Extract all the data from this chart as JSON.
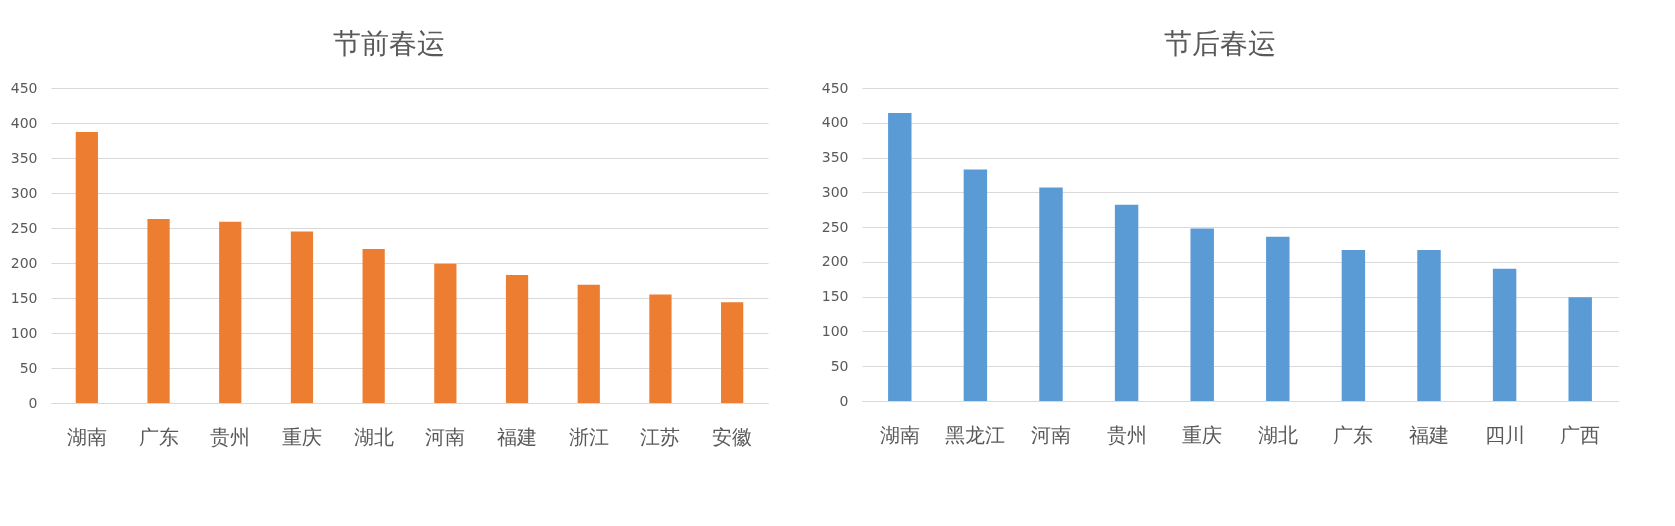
{
  "chart_data": [
    {
      "type": "bar",
      "title": "节前春运",
      "categories": [
        "湖南",
        "广东",
        "贵州",
        "重庆",
        "湖北",
        "河南",
        "福建",
        "浙江",
        "江苏",
        "安徽"
      ],
      "values": [
        387,
        263,
        259,
        245,
        220,
        199,
        183,
        169,
        155,
        144
      ],
      "color": "#ed7d31",
      "ylim": [
        0,
        450
      ],
      "yticks": [
        0,
        50,
        100,
        150,
        200,
        250,
        300,
        350,
        400,
        450
      ],
      "grid": "y"
    },
    {
      "type": "bar",
      "title": "节后春运",
      "categories": [
        "湖南",
        "黑龙江",
        "河南",
        "贵州",
        "重庆",
        "湖北",
        "广东",
        "福建",
        "四川",
        "广西"
      ],
      "values": [
        414,
        333,
        307,
        282,
        248,
        236,
        217,
        217,
        190,
        149
      ],
      "color": "#5b9bd5",
      "ylim": [
        0,
        450
      ],
      "yticks": [
        0,
        50,
        100,
        150,
        200,
        250,
        300,
        350,
        400,
        450
      ],
      "grid": "y"
    }
  ]
}
